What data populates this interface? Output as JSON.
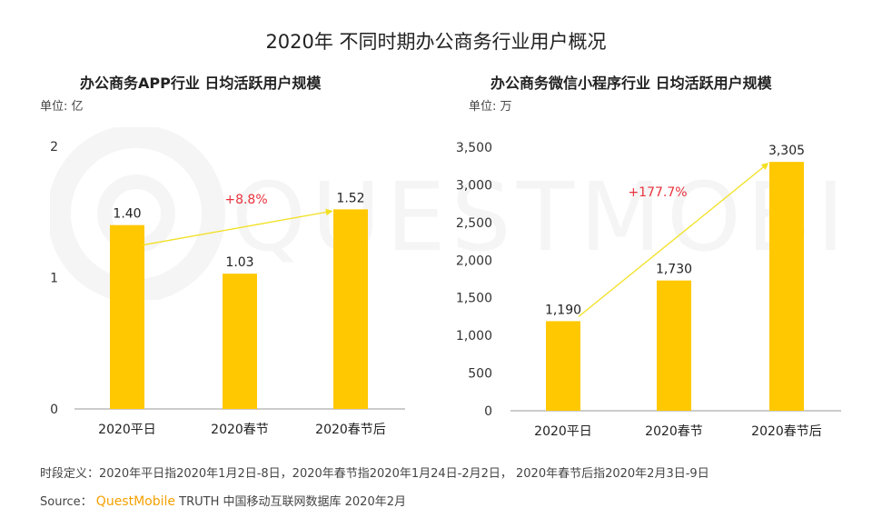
{
  "title": "2020年 不同时期办公商务行业用户概况",
  "watermark": "QUESTMOBILE",
  "colors": {
    "bar": "#FFC800",
    "arrow": "#f2e020",
    "growth": "#e8323c"
  },
  "footer": {
    "definition": "时段定义：2020年平日指2020年1月2日-8日，2020年春节指2020年1月24日-2月2日， 2020年春节后指2020年2月3日-9日",
    "source_label": "Source：",
    "source_brand": "QuestMobile",
    "source_text": "TRUTH 中国移动互联网数据库 2020年2月"
  },
  "chart_data": [
    {
      "type": "bar",
      "title": "办公商务APP行业 日均活跃用户规模",
      "unit": "单位: 亿",
      "categories": [
        "2020平日",
        "2020春节",
        "2020春节后"
      ],
      "values": [
        1.4,
        1.03,
        1.52
      ],
      "value_labels": [
        "1.40",
        "1.03",
        "1.52"
      ],
      "ylim": [
        0,
        2
      ],
      "yticks": [
        0,
        1,
        2
      ],
      "ytick_labels": [
        "0",
        "1",
        "2"
      ],
      "growth_label": "+8.8%"
    },
    {
      "type": "bar",
      "title": "办公商务微信小程序行业 日均活跃用户规模",
      "unit": "单位: 万",
      "categories": [
        "2020平日",
        "2020春节",
        "2020春节后"
      ],
      "values": [
        1190,
        1730,
        3305
      ],
      "value_labels": [
        "1,190",
        "1,730",
        "3,305"
      ],
      "ylim": [
        0,
        3500
      ],
      "yticks": [
        0,
        500,
        1000,
        1500,
        2000,
        2500,
        3000,
        3500
      ],
      "ytick_labels": [
        "0",
        "500",
        "1,000",
        "1,500",
        "2,000",
        "2,500",
        "3,000",
        "3,500"
      ],
      "growth_label": "+177.7%"
    }
  ]
}
